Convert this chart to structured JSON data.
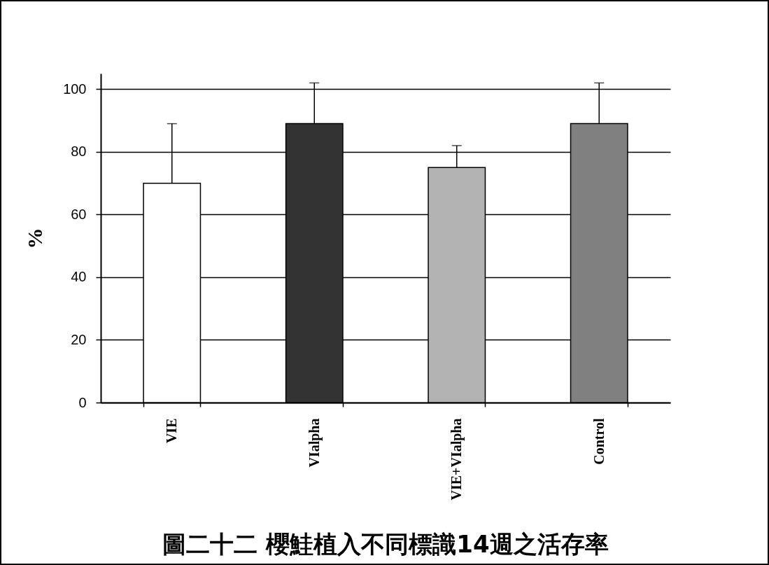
{
  "chart_data": {
    "type": "bar",
    "title": "圖二十二  櫻鮭植入不同標識14週之活存率",
    "ylabel": "%",
    "categories": [
      "VIE",
      "VIalpha",
      "VIE+VIalpha",
      "Control"
    ],
    "values": [
      70,
      89,
      75,
      89
    ],
    "colors": [
      "#ffffff",
      "#333333",
      "#b3b3b3",
      "#808080"
    ],
    "errors": [
      [
        70,
        89
      ],
      [
        89,
        102
      ],
      [
        75,
        82
      ],
      [
        89,
        102
      ]
    ],
    "ylim": [
      0,
      105
    ],
    "yticks": [
      0,
      20,
      40,
      60,
      80,
      100
    ],
    "grid": "y",
    "legend": false
  }
}
